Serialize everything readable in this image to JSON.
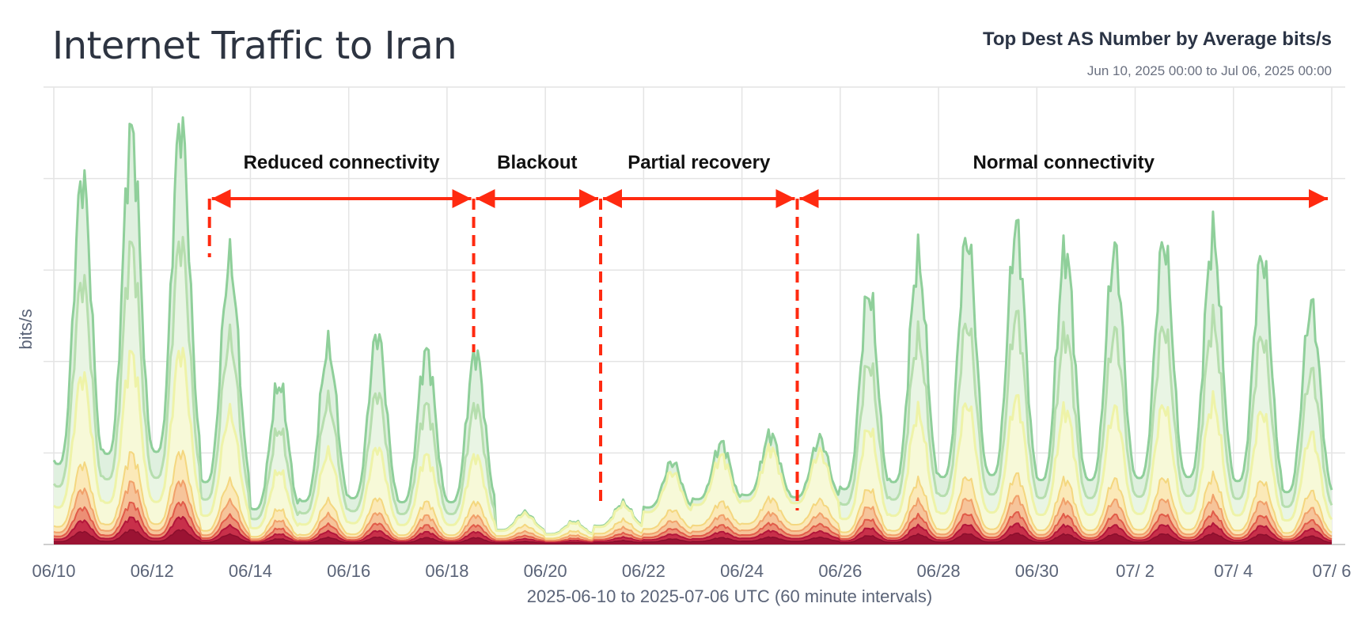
{
  "header": {
    "title": "Internet Traffic to Iran",
    "right_title": "Top Dest AS Number by Average bits/s",
    "right_subtitle": "Jun 10, 2025 00:00 to Jul 06, 2025 00:00"
  },
  "chart_data": {
    "type": "area",
    "stacked": true,
    "xlabel": "2025-06-10 to 2025-07-06 UTC (60 minute intervals)",
    "ylabel": "bits/s",
    "x_range": [
      "2025-06-10",
      "2025-07-06"
    ],
    "x_ticks": [
      "06/10",
      "06/12",
      "06/14",
      "06/16",
      "06/18",
      "06/20",
      "06/22",
      "06/24",
      "06/26",
      "06/28",
      "06/30",
      "07/ 2",
      "07/ 4",
      "07/ 6"
    ],
    "y_tick_labels_shown": false,
    "grid": true,
    "total_traffic_daily_peak_index": [
      {
        "date": "2025-06-10",
        "value": 80
      },
      {
        "date": "2025-06-11",
        "value": 90
      },
      {
        "date": "2025-06-12",
        "value": 92
      },
      {
        "date": "2025-06-13",
        "value": 62
      },
      {
        "date": "2025-06-14",
        "value": 35
      },
      {
        "date": "2025-06-15",
        "value": 43
      },
      {
        "date": "2025-06-16",
        "value": 46
      },
      {
        "date": "2025-06-17",
        "value": 42
      },
      {
        "date": "2025-06-18",
        "value": 42
      },
      {
        "date": "2025-06-19",
        "value": 7
      },
      {
        "date": "2025-06-20",
        "value": 5
      },
      {
        "date": "2025-06-21",
        "value": 9
      },
      {
        "date": "2025-06-22",
        "value": 18
      },
      {
        "date": "2025-06-23",
        "value": 22
      },
      {
        "date": "2025-06-24",
        "value": 24
      },
      {
        "date": "2025-06-25",
        "value": 23
      },
      {
        "date": "2025-06-26",
        "value": 55
      },
      {
        "date": "2025-06-27",
        "value": 62
      },
      {
        "date": "2025-06-28",
        "value": 67
      },
      {
        "date": "2025-06-29",
        "value": 69
      },
      {
        "date": "2025-06-30",
        "value": 64
      },
      {
        "date": "2025-07-01",
        "value": 64
      },
      {
        "date": "2025-07-02",
        "value": 66
      },
      {
        "date": "2025-07-03",
        "value": 67
      },
      {
        "date": "2025-07-04",
        "value": 63
      },
      {
        "date": "2025-07-05",
        "value": 52
      }
    ],
    "annotations": [
      {
        "label": "Reduced connectivity",
        "start": "2025-06-13 04:00",
        "end": "2025-06-18 13:00"
      },
      {
        "label": "Blackout",
        "start": "2025-06-18 13:00",
        "end": "2025-06-21 03:00"
      },
      {
        "label": "Partial recovery",
        "start": "2025-06-21 03:00",
        "end": "2025-06-25 03:00"
      },
      {
        "label": "Normal connectivity",
        "start": "2025-06-25 03:00",
        "end": "2025-07-06 00:00"
      }
    ],
    "colors": {
      "top_series": "#8fcf9a",
      "second_series": "#b6deae",
      "third_series": "#eef3a8",
      "lower_series": [
        "#f4d77f",
        "#f1a06a",
        "#e15b49",
        "#b3163a",
        "#8b0e2c"
      ],
      "annotation": "#ff2a10",
      "grid": "#e4e4e4"
    }
  }
}
